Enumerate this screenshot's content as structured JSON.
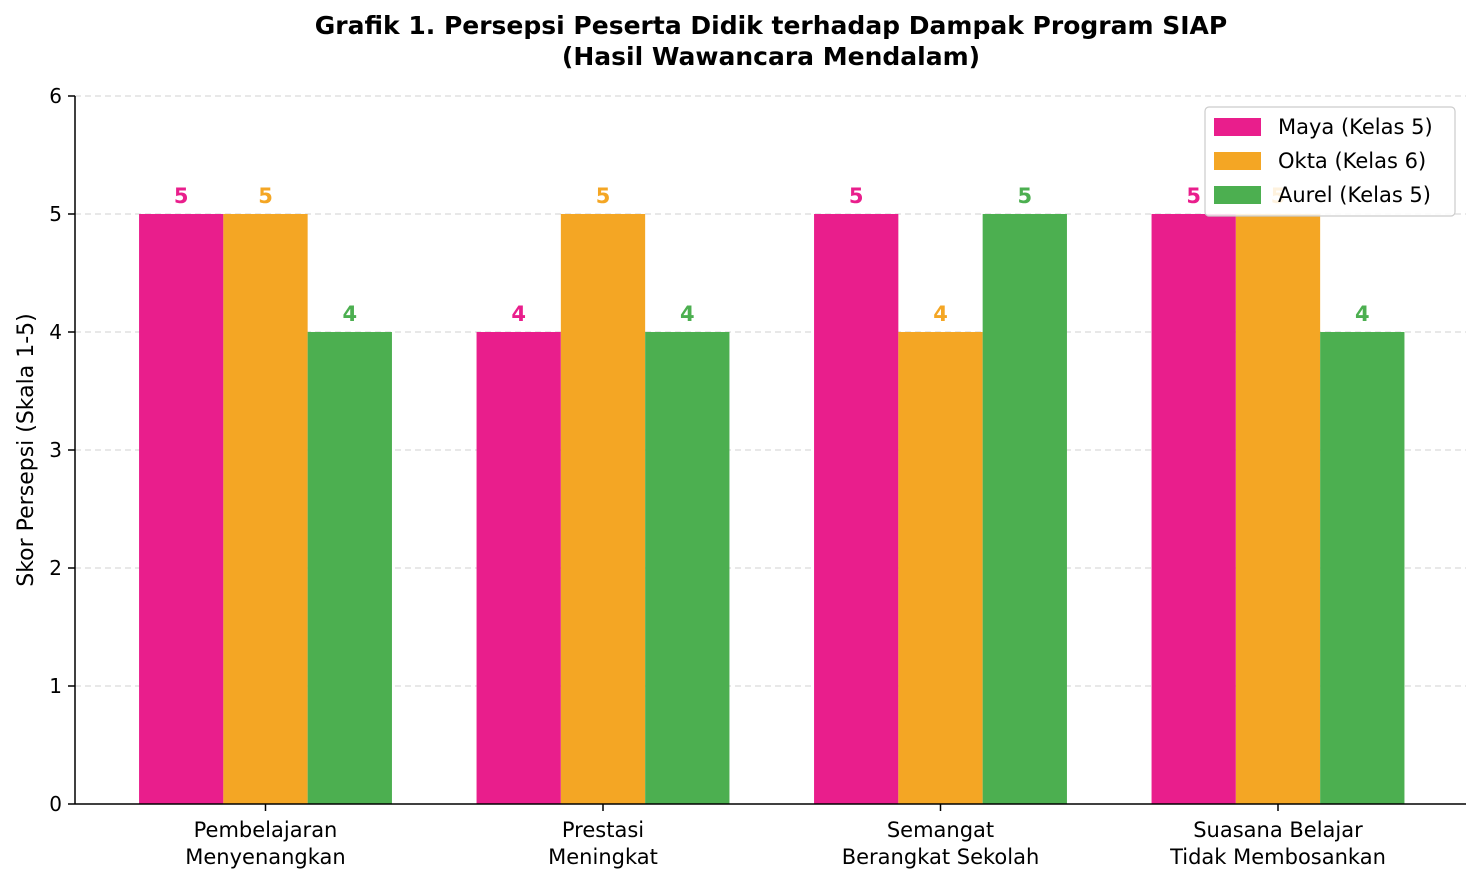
{
  "chart_data": {
    "type": "bar",
    "title": [
      "Grafik 1. Persepsi Peserta Didik terhadap Dampak Program SIAP",
      "(Hasil Wawancara Mendalam)"
    ],
    "xlabel": "",
    "ylabel": "Skor Persepsi (Skala 1-5)",
    "ylim": [
      0,
      6
    ],
    "yticks": [
      0,
      1,
      2,
      3,
      4,
      5,
      6
    ],
    "grid": "y-dashed",
    "legend_position": "top-right",
    "categories": [
      [
        "Pembelajaran",
        "Menyenangkan"
      ],
      [
        "Prestasi",
        "Meningkat"
      ],
      [
        "Semangat",
        "Berangkat Sekolah"
      ],
      [
        "Suasana Belajar",
        "Tidak Membosankan"
      ]
    ],
    "series": [
      {
        "name": "Maya (Kelas 5)",
        "color": "#e91e8c",
        "values": [
          5,
          4,
          5,
          5
        ]
      },
      {
        "name": "Okta (Kelas 6)",
        "color": "#f4a624",
        "values": [
          5,
          5,
          4,
          5
        ]
      },
      {
        "name": "Aurel (Kelas 5)",
        "color": "#4caf50",
        "values": [
          4,
          4,
          5,
          4
        ]
      }
    ]
  }
}
